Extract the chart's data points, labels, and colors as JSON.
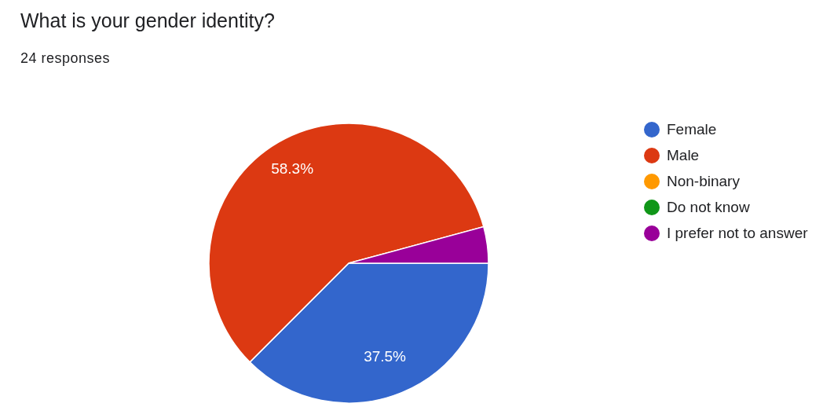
{
  "chart_data": {
    "type": "pie",
    "title": "What is your gender identity?",
    "subtitle": "24 responses",
    "categories": [
      "Female",
      "Male",
      "Non-binary",
      "Do not know",
      "I prefer not to answer"
    ],
    "values": [
      37.5,
      58.3,
      0,
      0,
      4.2
    ],
    "colors": [
      "#3366cc",
      "#dc3912",
      "#ff9900",
      "#109618",
      "#990099"
    ],
    "value_labels": [
      "37.5%",
      "58.3%",
      null,
      null,
      null
    ],
    "legend": "right"
  }
}
